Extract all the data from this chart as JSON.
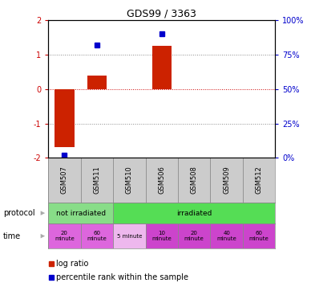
{
  "title": "GDS99 / 3363",
  "samples": [
    "GSM507",
    "GSM511",
    "GSM510",
    "GSM506",
    "GSM508",
    "GSM509",
    "GSM512"
  ],
  "log_ratio": [
    -1.7,
    0.4,
    0.0,
    1.25,
    0.0,
    0.0,
    0.0
  ],
  "percentile_rank": [
    2,
    82,
    0,
    90,
    0,
    0,
    0
  ],
  "percentile_rank_show": [
    true,
    true,
    false,
    true,
    false,
    false,
    false
  ],
  "bar_color": "#cc2200",
  "dot_color": "#0000cc",
  "ylim": [
    -2,
    2
  ],
  "y_left_ticks": [
    -2,
    -1,
    0,
    1,
    2
  ],
  "y_right_ticks": [
    0,
    25,
    50,
    75,
    100
  ],
  "y_right_tick_positions": [
    -2,
    -1,
    0,
    1,
    2
  ],
  "dotted_line_color": "#888888",
  "zero_line_color": "#cc0000",
  "protocol_color_not": "#88dd88",
  "protocol_color_irr": "#55dd55",
  "time_color_not": "#dd66dd",
  "time_color_irr": "#cc44cc",
  "time_color_5min": "#eeb8ee",
  "background_color": "#ffffff",
  "plot_bg": "#ffffff",
  "gsm_color": "#cccccc",
  "time_labels": [
    "20\nminute",
    "60\nminute",
    "5 minute",
    "10\nminute",
    "20\nminute",
    "40\nminute",
    "60\nminute"
  ]
}
